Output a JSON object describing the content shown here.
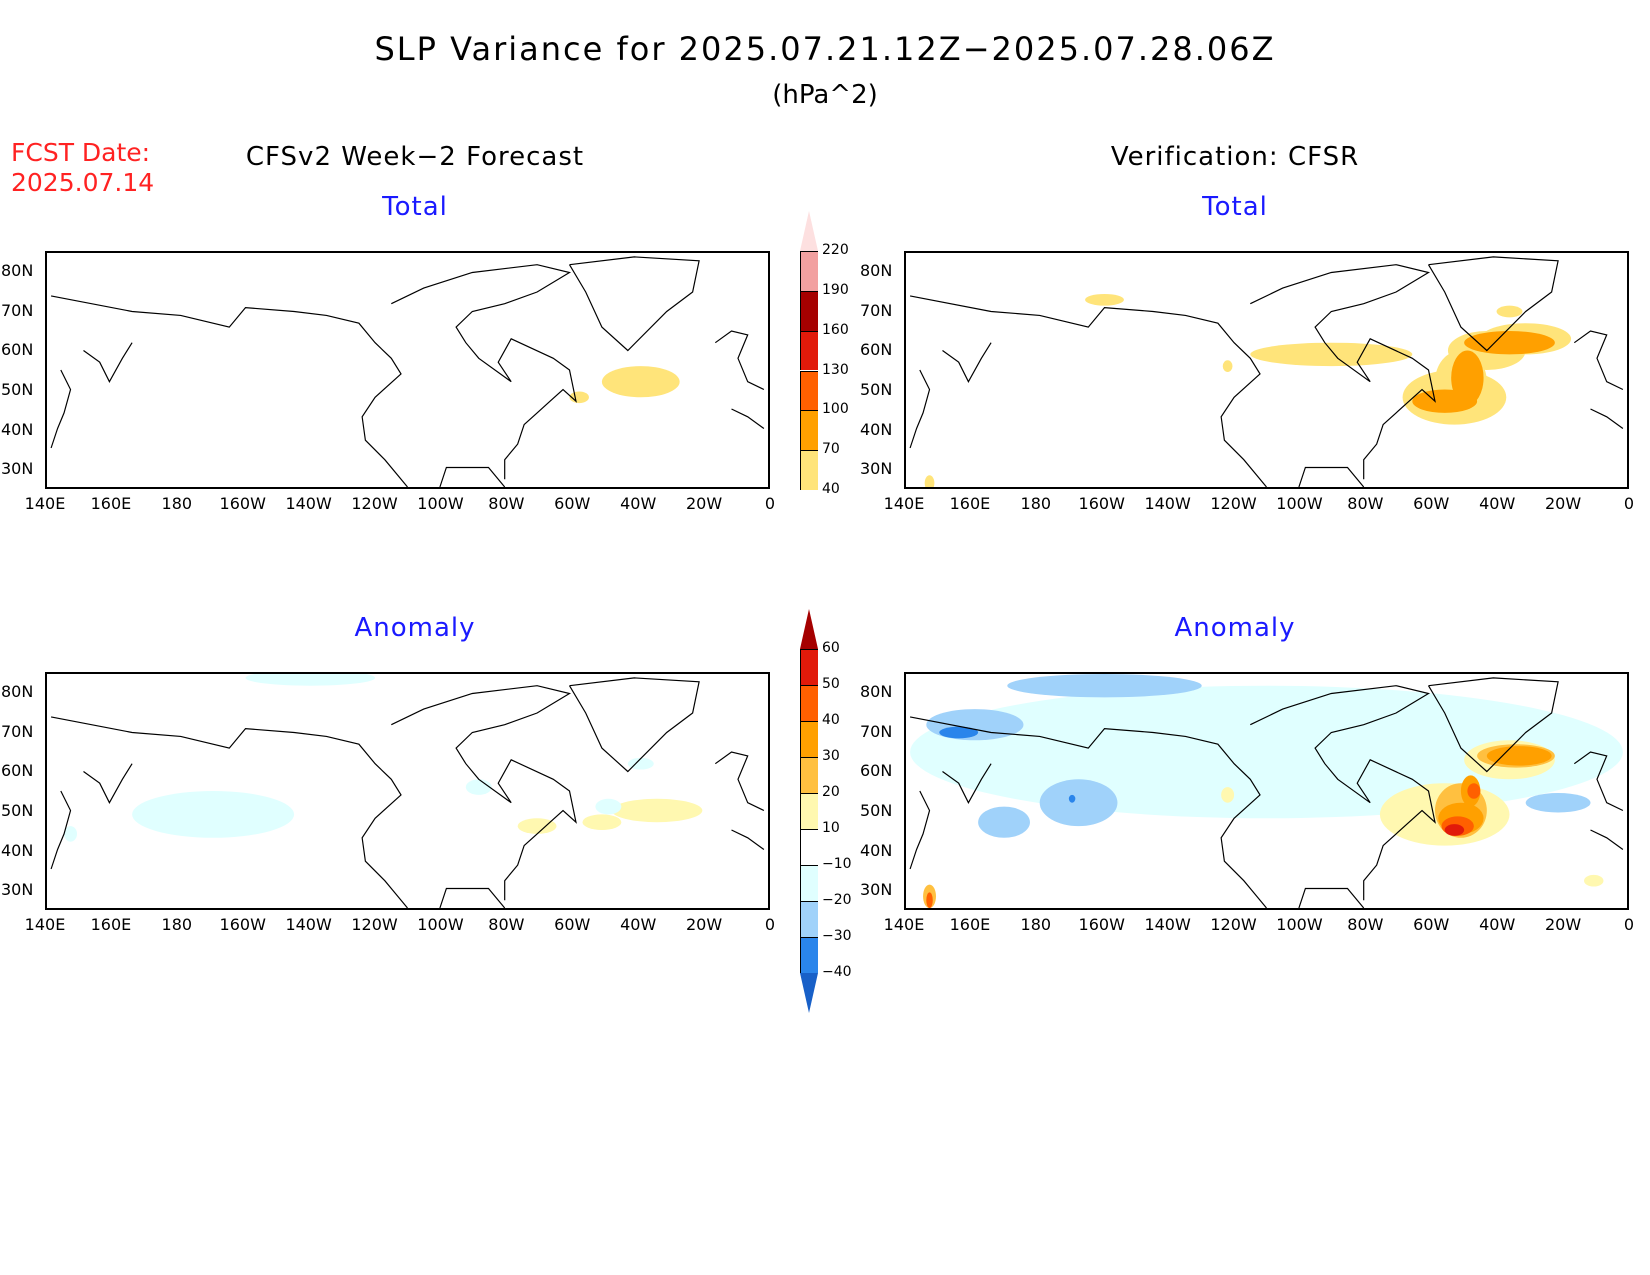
{
  "chart_data": {
    "type": "heatmap",
    "title": "SLP Variance for 2025.07.21.12Z−2025.07.28.06Z",
    "subtitle": "(hPa^2)",
    "fcst_label": "FCST Date:",
    "fcst_date": "2025.07.14",
    "columns": [
      "CFSv2 Week−2 Forecast",
      "Verification: CFSR"
    ],
    "rows": [
      "Total",
      "Anomaly"
    ],
    "lat_ticks": [
      "80N",
      "70N",
      "60N",
      "50N",
      "40N",
      "30N"
    ],
    "lat_values": [
      80,
      70,
      60,
      50,
      40,
      30
    ],
    "lon_ticks": [
      "140E",
      "160E",
      "180",
      "160W",
      "140W",
      "120W",
      "100W",
      "80W",
      "60W",
      "40W",
      "20W",
      "0"
    ],
    "lat_range": [
      25,
      85
    ],
    "lon_range_east": [
      140,
      360
    ],
    "total_colorbar": {
      "levels": [
        "40",
        "70",
        "100",
        "130",
        "160",
        "190",
        "220"
      ],
      "colors": [
        "#ffe47a",
        "#ffa000",
        "#ff6000",
        "#e11a0a",
        "#a50000",
        "#f2a0a0",
        "#fde0e0"
      ]
    },
    "anomaly_colorbar": {
      "levels": [
        "60",
        "50",
        "40",
        "30",
        "20",
        "10",
        "−10",
        "−20",
        "−30",
        "−40"
      ],
      "colors": {
        "pos": [
          "#fff8b0",
          "#ffc040",
          "#ffa000",
          "#ff6000",
          "#e11a0a",
          "#a50000"
        ],
        "neg": [
          "#e0ffff",
          "#a0d2fa",
          "#2a85eb",
          "#1860c8"
        ]
      }
    },
    "features": [
      {
        "panel": "forecast-total",
        "lon": -38,
        "lat": 51,
        "value": 50
      },
      {
        "panel": "verify-total",
        "lon": -50,
        "lat": 48,
        "value": 100
      },
      {
        "panel": "verify-anomaly",
        "lon": -52,
        "lat": 46,
        "value": 55
      },
      {
        "panel": "verify-anomaly",
        "lon": -165,
        "lat": 52,
        "value": -25
      }
    ]
  }
}
